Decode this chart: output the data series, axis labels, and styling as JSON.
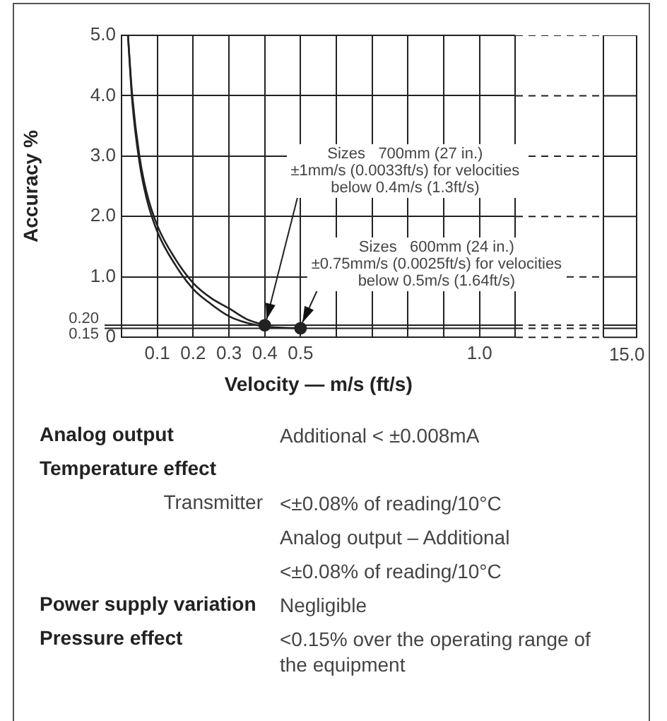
{
  "chart_data": [
    {
      "type": "line",
      "xlabel": "Velocity — m/s (ft/s)",
      "ylabel": "Accuracy %",
      "xlim": [
        0,
        1.1
      ],
      "ylim": [
        0,
        5
      ],
      "xticks": [
        0.1,
        0.2,
        0.3,
        0.4,
        0.5,
        {
          "value": 0.6,
          "label": null
        },
        {
          "value": 0.7,
          "label": null
        },
        {
          "value": 0.8,
          "label": null
        },
        {
          "value": 0.9,
          "label": null
        },
        {
          "value": 1,
          "label": "1.0"
        },
        {
          "value": 1.1,
          "label": null
        }
      ],
      "yticks": [
        0,
        {
          "value": 1,
          "label": "1.0"
        },
        {
          "value": 2,
          "label": "2.0"
        },
        {
          "value": 3,
          "label": "3.0"
        },
        {
          "value": 4,
          "label": "4.0"
        },
        {
          "value": 5,
          "label": "5.0"
        }
      ],
      "ref_lines": [
        {
          "axis": "y",
          "value": 0.15,
          "label": "0.15",
          "color": "#222222"
        },
        {
          "axis": "y",
          "value": 0.2,
          "label": "0.20",
          "color": "#222222"
        }
      ],
      "grid": true,
      "legend": false,
      "marker": "none",
      "line_style": "solid",
      "series": [
        {
          "color": "#222222",
          "x": [
            0.018,
            0.03,
            0.05,
            0.07,
            0.1,
            0.15,
            0.2,
            0.25,
            0.3,
            0.35,
            0.4
          ],
          "values": [
            5.0,
            4.0,
            3.0,
            2.4,
            1.85,
            1.3,
            0.9,
            0.65,
            0.48,
            0.3,
            0.2
          ]
        },
        {
          "color": "#222222",
          "x": [
            0.018,
            0.03,
            0.05,
            0.07,
            0.1,
            0.15,
            0.2,
            0.25,
            0.3,
            0.35,
            0.4,
            0.45,
            0.5
          ],
          "values": [
            5.0,
            3.9,
            2.9,
            2.3,
            1.75,
            1.2,
            0.8,
            0.55,
            0.35,
            0.24,
            0.18,
            0.16,
            0.15
          ]
        },
        {
          "type": "scatter",
          "marker": "circle",
          "color": "#222222",
          "x": [
            0.4,
            0.5
          ],
          "values": [
            0.2,
            0.15
          ]
        }
      ],
      "annotations": [
        {
          "text": "Sizes   700mm (27 in.)\n±1mm/s (0.0033ft/s) for velocities\nbelow 0.4m/s (1.3ft/s)",
          "x": 0.4,
          "y": 0.2
        },
        {
          "text": "Sizes   600mm (24 in.)\n±0.75mm/s (0.0025ft/s) for velocities\nbelow 0.5m/s (1.64ft/s)",
          "x": 0.5,
          "y": 0.15
        },
        "15.0"
      ]
    },
    {
      "type": "other",
      "categories": [
        "Analog output",
        "Temperature effect",
        "Transmitter",
        null,
        null,
        "Power supply variation",
        "Pressure effect"
      ],
      "value_labels": [
        "Additional < ±0.008mA",
        null,
        "<±0.08% of reading/10°C",
        "Analog output – Additional",
        "<±0.08% of reading/10°C",
        "Negligible",
        "<0.15% over the operating range of the equipment"
      ]
    }
  ]
}
